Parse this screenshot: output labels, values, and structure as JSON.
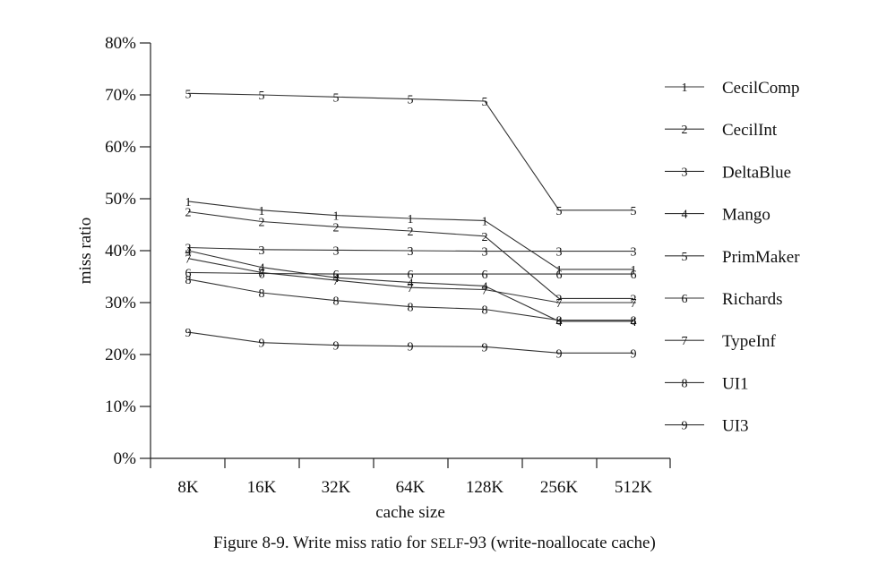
{
  "chart_data": {
    "type": "line",
    "title": "",
    "caption_prefix": "Figure 8-9.  Write miss ratio for ",
    "caption_self": "SELF",
    "caption_suffix": "-93 (write-noallocate cache)",
    "xlabel": "cache size",
    "ylabel": "miss ratio",
    "categories": [
      "8K",
      "16K",
      "32K",
      "64K",
      "128K",
      "256K",
      "512K"
    ],
    "ylim": [
      0,
      80
    ],
    "yticks": [
      0,
      10,
      20,
      30,
      40,
      50,
      60,
      70,
      80
    ],
    "ytick_labels": [
      "0%",
      "10%",
      "20%",
      "30%",
      "40%",
      "50%",
      "60%",
      "70%",
      "80%"
    ],
    "legend_position": "right",
    "series": [
      {
        "name": "CecilComp",
        "marker": "1",
        "values": [
          49.5,
          47.8,
          46.8,
          46.2,
          45.8,
          36.4,
          36.4
        ]
      },
      {
        "name": "CecilInt",
        "marker": "2",
        "values": [
          47.5,
          45.6,
          44.6,
          43.8,
          42.8,
          30.8,
          30.8
        ]
      },
      {
        "name": "DeltaBlue",
        "marker": "3",
        "values": [
          40.6,
          40.2,
          40.1,
          40.0,
          39.9,
          39.9,
          39.9
        ]
      },
      {
        "name": "Mango",
        "marker": "4",
        "values": [
          40.0,
          36.8,
          34.8,
          33.9,
          33.2,
          26.4,
          26.4
        ]
      },
      {
        "name": "PrimMaker",
        "marker": "5",
        "values": [
          70.3,
          70.0,
          69.6,
          69.2,
          68.8,
          47.8,
          47.8
        ]
      },
      {
        "name": "Richards",
        "marker": "6",
        "values": [
          35.8,
          35.6,
          35.5,
          35.5,
          35.5,
          35.5,
          35.5
        ]
      },
      {
        "name": "TypeInf",
        "marker": "7",
        "values": [
          38.5,
          35.8,
          34.3,
          32.9,
          32.5,
          30.0,
          30.0
        ]
      },
      {
        "name": "UI1",
        "marker": "8",
        "values": [
          34.5,
          31.9,
          30.4,
          29.2,
          28.7,
          26.6,
          26.6
        ]
      },
      {
        "name": "UI3",
        "marker": "9",
        "values": [
          24.3,
          22.3,
          21.8,
          21.6,
          21.5,
          20.3,
          20.3
        ]
      }
    ]
  }
}
